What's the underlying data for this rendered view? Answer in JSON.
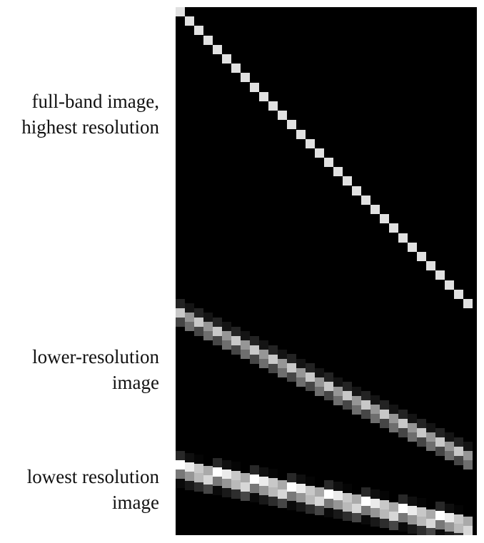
{
  "labels": [
    {
      "id": "full",
      "lines": [
        "full-band image,",
        "highest resolution"
      ]
    },
    {
      "id": "lower",
      "lines": [
        "lower-resolution",
        "image"
      ]
    },
    {
      "id": "lowest",
      "lines": [
        "lowest resolution",
        "image"
      ]
    }
  ],
  "colors": {
    "background": "#000000",
    "page": "#ffffff",
    "pixel_max": "#ffffff"
  }
}
